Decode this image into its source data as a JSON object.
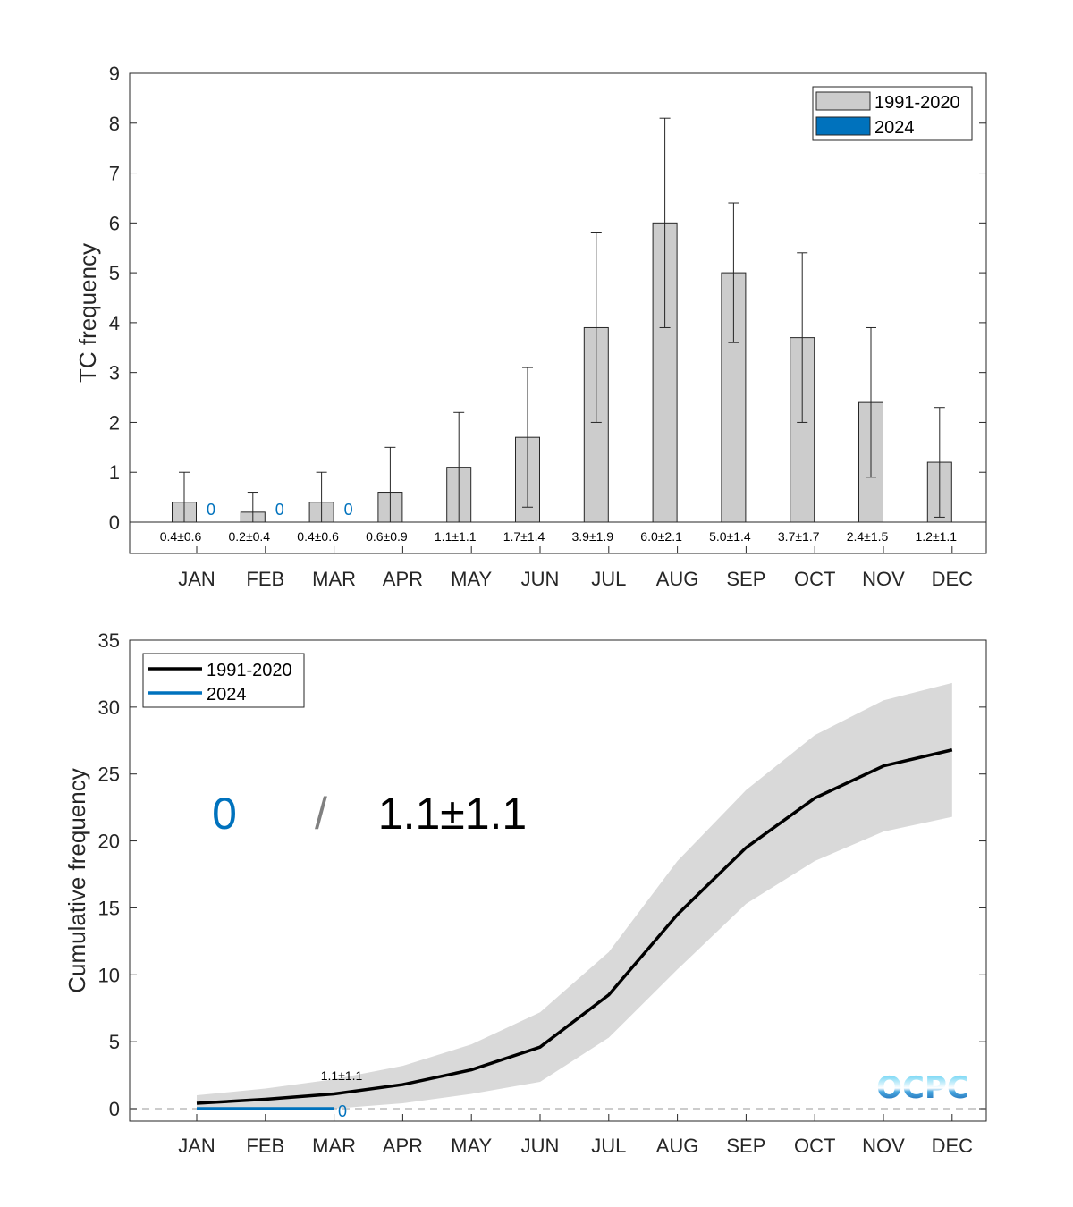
{
  "colors": {
    "climatology": "#cccccc",
    "band": "#d9d9d9",
    "current": "#0072BD",
    "line": "#000000",
    "slash": "#808080"
  },
  "chart_data": [
    {
      "type": "bar",
      "title": "",
      "xlabel": "",
      "ylabel": "TC frequency",
      "ylim": [
        0,
        9
      ],
      "yticks": [
        "0",
        "1",
        "2",
        "3",
        "4",
        "5",
        "6",
        "7",
        "8",
        "9"
      ],
      "categories": [
        "JAN",
        "FEB",
        "MAR",
        "APR",
        "MAY",
        "JUN",
        "JUL",
        "AUG",
        "SEP",
        "OCT",
        "NOV",
        "DEC"
      ],
      "series": [
        {
          "name": "1991-2020",
          "values": [
            0.4,
            0.2,
            0.4,
            0.6,
            1.1,
            1.7,
            3.9,
            6.0,
            5.0,
            3.7,
            2.4,
            1.2
          ],
          "std": [
            0.6,
            0.4,
            0.6,
            0.9,
            1.1,
            1.4,
            1.9,
            2.1,
            1.4,
            1.7,
            1.5,
            1.1
          ]
        },
        {
          "name": "2024",
          "values": [
            0,
            0,
            0
          ]
        }
      ],
      "value_labels": [
        "0.4±0.6",
        "0.2±0.4",
        "0.4±0.6",
        "0.6±0.9",
        "1.1±1.1",
        "1.7±1.4",
        "3.9±1.9",
        "6.0±2.1",
        "5.0±1.4",
        "3.7±1.7",
        "2.4±1.5",
        "1.2±1.1"
      ],
      "current_labels": [
        "0",
        "0",
        "0"
      ],
      "legend": [
        "1991-2020",
        "2024"
      ],
      "legend_position": "top-right"
    },
    {
      "type": "line",
      "title": "",
      "xlabel": "",
      "ylabel": "Cumulative frequency",
      "ylim": [
        0,
        35
      ],
      "yticks": [
        "0",
        "5",
        "10",
        "15",
        "20",
        "25",
        "30",
        "35"
      ],
      "categories": [
        "JAN",
        "FEB",
        "MAR",
        "APR",
        "MAY",
        "JUN",
        "JUL",
        "AUG",
        "SEP",
        "OCT",
        "NOV",
        "DEC"
      ],
      "series": [
        {
          "name": "1991-2020",
          "values": [
            0.4,
            0.7,
            1.1,
            1.8,
            2.9,
            4.6,
            8.5,
            14.5,
            19.5,
            23.2,
            25.6,
            26.8
          ],
          "upper": [
            1.0,
            1.5,
            2.2,
            3.2,
            4.8,
            7.2,
            11.7,
            18.5,
            23.8,
            27.9,
            30.5,
            31.8
          ],
          "lower": [
            0,
            0,
            0,
            0.4,
            1.1,
            2.0,
            5.3,
            10.4,
            15.3,
            18.5,
            20.7,
            21.8
          ]
        },
        {
          "name": "2024",
          "values": [
            0,
            0,
            0
          ]
        }
      ],
      "legend": [
        "1991-2020",
        "2024"
      ],
      "legend_position": "top-left",
      "annotations": {
        "current_total": "0",
        "separator": "/",
        "climatology_total": "1.1±1.1",
        "point_label": "1.1±1.1",
        "end_label": "0"
      },
      "logo": "OCPC"
    }
  ]
}
